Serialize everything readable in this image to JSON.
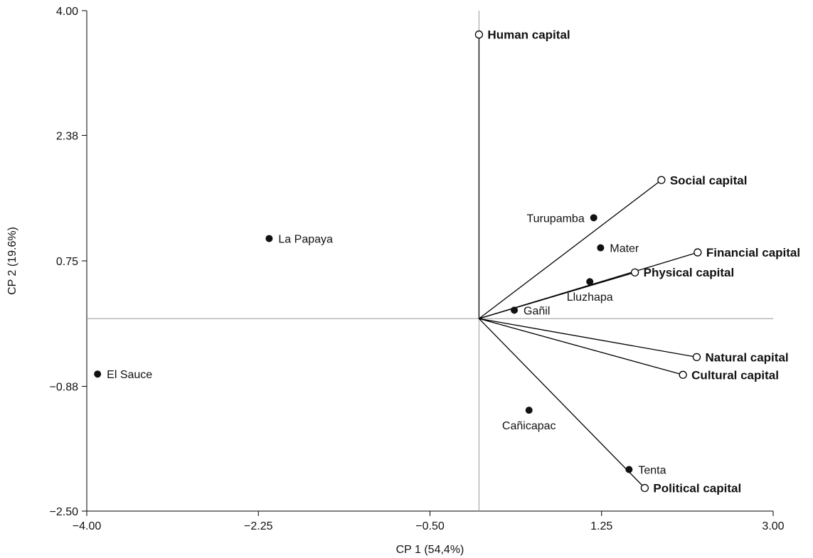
{
  "chart_data": {
    "type": "scatter",
    "title": "",
    "xlabel": "CP 1 (54,4%)",
    "ylabel": "CP 2 (19.6%)",
    "xlim": [
      -4.0,
      3.0
    ],
    "ylim": [
      -2.5,
      4.0
    ],
    "xticks": [
      "-4.00",
      "-2.25",
      "-0.50",
      "1.25",
      "3.00"
    ],
    "yticks": [
      "-2.50",
      "-0.88",
      "0.75",
      "2.38",
      "4.00"
    ],
    "grid": false,
    "series": [
      {
        "name": "",
        "marker": "filled",
        "points": [
          {
            "label": "La Papaya",
            "x": -2.14,
            "y": 1.04,
            "label_pos": "right"
          },
          {
            "label": "El Sauce",
            "x": -3.89,
            "y": -0.72,
            "label_pos": "right"
          },
          {
            "label": "Turupamba",
            "x": 1.17,
            "y": 1.31,
            "label_pos": "left"
          },
          {
            "label": "Mater",
            "x": 1.24,
            "y": 0.92,
            "label_pos": "right"
          },
          {
            "label": "Lluzhapa",
            "x": 1.13,
            "y": 0.48,
            "label_pos": "below"
          },
          {
            "label": "Gañil",
            "x": 0.36,
            "y": 0.11,
            "label_pos": "right"
          },
          {
            "label": "Cañicapac",
            "x": 0.51,
            "y": -1.19,
            "label_pos": "below"
          },
          {
            "label": "Tenta",
            "x": 1.53,
            "y": -1.96,
            "label_pos": "right"
          }
        ]
      },
      {
        "name": "",
        "marker": "open-vector",
        "points": [
          {
            "label": "Human capital",
            "x": 0.0,
            "y": 3.69
          },
          {
            "label": "Social capital",
            "x": 1.86,
            "y": 1.8
          },
          {
            "label": "Financial capital",
            "x": 2.23,
            "y": 0.86
          },
          {
            "label": "Physical capital",
            "x": 1.59,
            "y": 0.6
          },
          {
            "label": "Natural capital",
            "x": 2.22,
            "y": -0.5
          },
          {
            "label": "Cultural capital",
            "x": 2.08,
            "y": -0.73
          },
          {
            "label": "Political capital",
            "x": 1.69,
            "y": -2.2
          }
        ]
      }
    ]
  }
}
